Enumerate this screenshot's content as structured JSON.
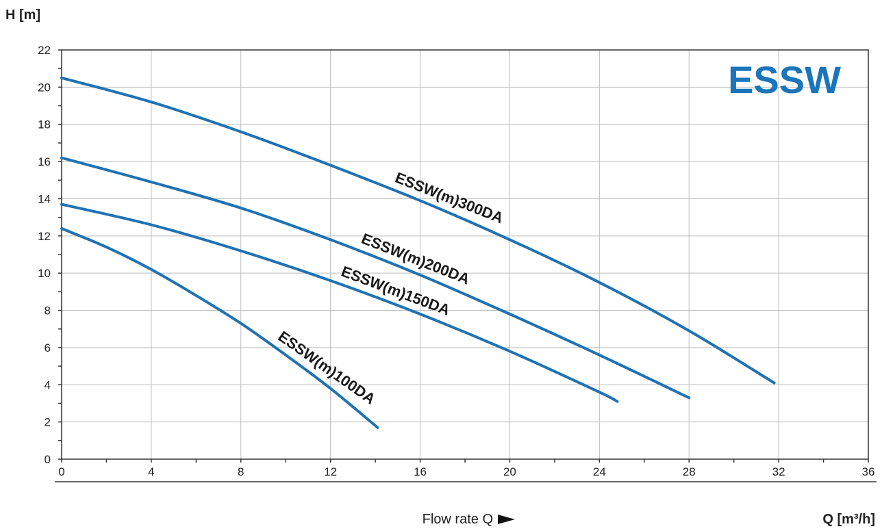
{
  "chart_data": {
    "type": "line",
    "title": "ESSW",
    "ylabel": "H [m]",
    "xlabel": "Q [m³/h]",
    "x_caption": "Flow rate Q",
    "xlim": [
      0,
      36
    ],
    "ylim": [
      0,
      22
    ],
    "x_ticks": [
      0,
      4,
      8,
      12,
      16,
      20,
      24,
      28,
      32,
      36
    ],
    "y_ticks": [
      0,
      2,
      4,
      6,
      8,
      10,
      12,
      14,
      16,
      18,
      20,
      22
    ],
    "grid": true,
    "series": [
      {
        "name": "ESSW(m)300DA",
        "x": [
          0,
          4,
          8,
          12,
          16,
          20,
          24,
          28,
          31.8
        ],
        "y": [
          20.5,
          19.2,
          17.6,
          15.8,
          13.9,
          11.8,
          9.5,
          6.9,
          4.1
        ]
      },
      {
        "name": "ESSW(m)200DA",
        "x": [
          0,
          4,
          8,
          12,
          16,
          20,
          24,
          28
        ],
        "y": [
          16.2,
          14.9,
          13.5,
          11.8,
          9.9,
          7.8,
          5.6,
          3.3
        ]
      },
      {
        "name": "ESSW(m)150DA",
        "x": [
          0,
          4,
          8,
          12,
          16,
          20,
          24,
          24.8
        ],
        "y": [
          13.7,
          12.6,
          11.2,
          9.6,
          7.8,
          5.8,
          3.6,
          3.1
        ]
      },
      {
        "name": "ESSW(m)100DA",
        "x": [
          0,
          2,
          4,
          6,
          8,
          10,
          12,
          14.1
        ],
        "y": [
          12.4,
          11.4,
          10.2,
          8.8,
          7.3,
          5.6,
          3.8,
          1.7
        ]
      }
    ]
  },
  "colors": {
    "curve": "#1f72b4",
    "brand": "#1a75bb",
    "grid": "#bbbbbb",
    "axis": "#333333"
  }
}
